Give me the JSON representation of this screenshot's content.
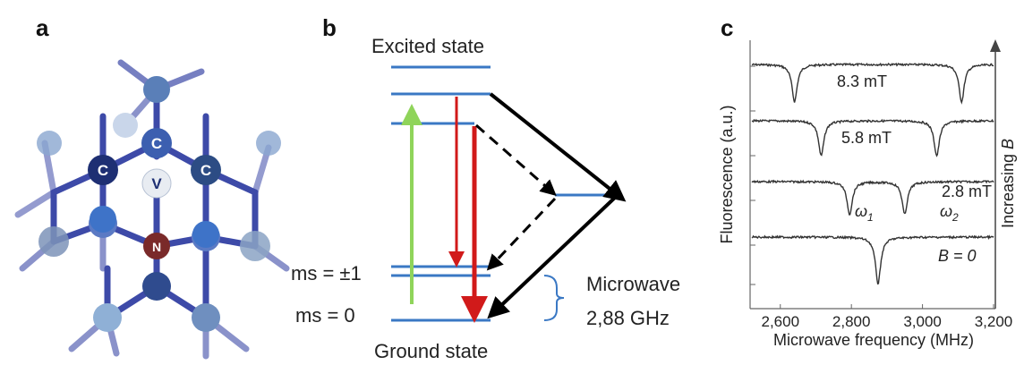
{
  "panels": {
    "a": {
      "letter": "a",
      "atoms": {
        "carbon": "C",
        "vacancy": "V",
        "nitrogen": "N"
      }
    },
    "b": {
      "letter": "b",
      "excited_state": "Excited state",
      "ground_state": "Ground state",
      "ms_pm1": "ms = ±1",
      "ms_0": "ms = 0",
      "microwave_line1": "Microwave",
      "microwave_line2": "2,88 GHz"
    },
    "c": {
      "letter": "c",
      "ylabel": "Fluorescence (a.u.)",
      "xlabel": "Microwave frequency (MHz)",
      "right_label_prefix": "Increasing ",
      "right_label_var": "B",
      "omega1": "ω",
      "omega1_sub": "1",
      "omega2": "ω",
      "omega2_sub": "2"
    }
  },
  "colors": {
    "level": "#3a78c4",
    "green_arrow": "#8fd45a",
    "red_arrow": "#d11a1a",
    "black_arrow": "#000000",
    "brace": "#3a78c4",
    "atom_dark": "#1e2f73",
    "atom_mid": "#3c5fb0",
    "atom_light": "#7ea4d6",
    "bond": "#3d4aa8"
  },
  "chart_data": {
    "type": "line",
    "xlabel": "Microwave frequency (MHz)",
    "ylabel": "Fluorescence (a.u.)",
    "xlim": [
      2520,
      3200
    ],
    "x_ticks": [
      2600,
      2800,
      3000,
      3200
    ],
    "x_tick_labels": [
      "2,600",
      "2,800",
      "3,000",
      "3,200"
    ],
    "series": [
      {
        "name": "8.3 mT",
        "dips": [
          2640,
          3110
        ],
        "depth": 0.8
      },
      {
        "name": "5.8 mT",
        "dips": [
          2715,
          3040
        ],
        "depth": 0.75
      },
      {
        "name": "2.8 mT",
        "dips": [
          2795,
          2950
        ],
        "depth": 0.7
      },
      {
        "name": "B = 0",
        "dips": [
          2875
        ],
        "depth": 1.0
      }
    ]
  }
}
